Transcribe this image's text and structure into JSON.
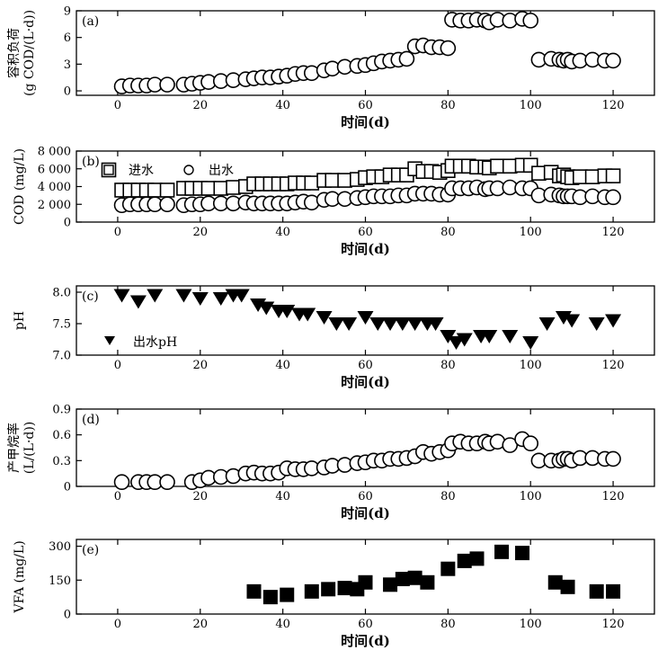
{
  "figure": {
    "x_axis_label": "时间(d)"
  },
  "chart_data": [
    {
      "id": "a",
      "panel_label": "(a)",
      "type": "scatter",
      "marker": "open-circle",
      "ylabel_lines": [
        "容积负荷",
        "(g COD/(L·d))"
      ],
      "xlabel": "时间(d)",
      "xlim": [
        -10,
        130
      ],
      "ylim": [
        -0.5,
        9
      ],
      "x_ticks": [
        0,
        20,
        40,
        60,
        80,
        100,
        120
      ],
      "y_ticks": [
        0,
        3,
        6,
        9
      ],
      "y_tick_labels": [
        "0",
        "3",
        "6",
        "9"
      ],
      "grid": false,
      "series": [
        {
          "x": [
            1,
            3,
            5,
            7,
            9,
            12,
            16,
            18,
            20,
            22,
            25,
            28,
            31,
            33,
            35,
            37,
            39,
            41,
            43,
            45,
            47,
            50,
            52,
            55,
            58,
            60,
            62,
            64,
            66,
            68,
            70,
            72,
            74,
            76,
            78,
            80,
            81,
            83,
            85,
            87,
            89,
            90,
            92,
            95,
            98,
            100,
            102,
            105,
            107,
            108,
            109,
            110,
            112,
            115,
            118,
            120
          ],
          "y": [
            0.5,
            0.6,
            0.6,
            0.6,
            0.7,
            0.7,
            0.7,
            0.8,
            0.9,
            1.0,
            1.1,
            1.2,
            1.3,
            1.4,
            1.5,
            1.5,
            1.6,
            1.7,
            1.9,
            2.0,
            2.0,
            2.3,
            2.5,
            2.7,
            2.8,
            2.9,
            3.1,
            3.3,
            3.4,
            3.5,
            3.6,
            5.0,
            5.1,
            4.9,
            4.9,
            4.8,
            8.0,
            7.9,
            7.9,
            8.0,
            7.9,
            7.7,
            8.0,
            7.9,
            8.1,
            7.9,
            3.5,
            3.6,
            3.5,
            3.4,
            3.5,
            3.3,
            3.4,
            3.5,
            3.4,
            3.4
          ]
        }
      ]
    },
    {
      "id": "b",
      "panel_label": "(b)",
      "type": "scatter",
      "ylabel_lines": [
        "COD (mg/L)"
      ],
      "xlabel": "时间(d)",
      "xlim": [
        -10,
        130
      ],
      "ylim": [
        0,
        8000
      ],
      "x_ticks": [
        0,
        20,
        40,
        60,
        80,
        100,
        120
      ],
      "y_ticks": [
        0,
        2000,
        4000,
        6000,
        8000
      ],
      "y_tick_labels": [
        "0",
        "2 000",
        "4 000",
        "6 000",
        "8 000"
      ],
      "grid": false,
      "legend_position": "top-left",
      "series": [
        {
          "name": "进水",
          "marker": "open-square",
          "x": [
            1,
            3,
            5,
            7,
            9,
            12,
            16,
            18,
            20,
            22,
            25,
            28,
            31,
            33,
            35,
            37,
            39,
            41,
            43,
            45,
            47,
            50,
            52,
            55,
            58,
            60,
            62,
            64,
            66,
            68,
            70,
            72,
            74,
            76,
            78,
            80,
            81,
            83,
            85,
            87,
            89,
            90,
            92,
            95,
            98,
            100,
            102,
            105,
            107,
            108,
            109,
            110,
            112,
            115,
            118,
            120
          ],
          "y": [
            3600,
            3600,
            3600,
            3600,
            3600,
            3600,
            3800,
            3800,
            3800,
            3800,
            3800,
            3900,
            4000,
            4300,
            4300,
            4300,
            4300,
            4300,
            4400,
            4400,
            4400,
            4700,
            4700,
            4700,
            4800,
            5000,
            5100,
            5100,
            5300,
            5300,
            5300,
            6000,
            5700,
            5700,
            5600,
            5800,
            6300,
            6300,
            6300,
            6200,
            6200,
            6100,
            6300,
            6300,
            6400,
            6400,
            5500,
            5600,
            5200,
            5300,
            5100,
            5000,
            5100,
            5100,
            5200,
            5200
          ]
        },
        {
          "name": "出水",
          "marker": "open-circle",
          "x": [
            1,
            3,
            5,
            7,
            9,
            12,
            16,
            18,
            20,
            22,
            25,
            28,
            31,
            33,
            35,
            37,
            39,
            41,
            43,
            45,
            47,
            50,
            52,
            55,
            58,
            60,
            62,
            64,
            66,
            68,
            70,
            72,
            74,
            76,
            78,
            80,
            81,
            83,
            85,
            87,
            89,
            90,
            92,
            95,
            98,
            100,
            102,
            105,
            107,
            108,
            109,
            110,
            112,
            115,
            118,
            120
          ],
          "y": [
            1900,
            2000,
            2000,
            2000,
            2000,
            2000,
            1900,
            2000,
            2000,
            2100,
            2100,
            2100,
            2200,
            2100,
            2100,
            2100,
            2100,
            2100,
            2200,
            2300,
            2200,
            2500,
            2600,
            2600,
            2700,
            2800,
            2900,
            2900,
            2900,
            3000,
            3000,
            3200,
            3200,
            3200,
            3100,
            3100,
            3800,
            3800,
            3800,
            3900,
            3700,
            3800,
            3800,
            3900,
            3800,
            3800,
            3000,
            3100,
            3000,
            2900,
            2900,
            2900,
            2800,
            2900,
            2800,
            2800
          ]
        }
      ]
    },
    {
      "id": "c",
      "panel_label": "(c)",
      "type": "scatter",
      "ylabel_lines": [
        "pH"
      ],
      "xlabel": "时间(d)",
      "xlim": [
        -10,
        130
      ],
      "ylim": [
        7.0,
        8.1
      ],
      "x_ticks": [
        0,
        20,
        40,
        60,
        80,
        100,
        120
      ],
      "y_ticks": [
        7.0,
        7.5,
        8.0
      ],
      "y_tick_labels": [
        "7.0",
        "7.5",
        "8.0"
      ],
      "grid": false,
      "legend_position": "bottom-left",
      "series": [
        {
          "name": "出水pH",
          "marker": "filled-down-triangle",
          "x": [
            1,
            5,
            9,
            16,
            20,
            25,
            28,
            30,
            34,
            36,
            39,
            41,
            44,
            46,
            50,
            53,
            56,
            60,
            63,
            66,
            69,
            72,
            75,
            77,
            80,
            82,
            84,
            88,
            90,
            95,
            100,
            104,
            108,
            110,
            116,
            120
          ],
          "y": [
            7.95,
            7.85,
            7.95,
            7.95,
            7.9,
            7.9,
            7.95,
            7.95,
            7.8,
            7.75,
            7.7,
            7.7,
            7.65,
            7.65,
            7.6,
            7.5,
            7.5,
            7.6,
            7.5,
            7.5,
            7.5,
            7.5,
            7.5,
            7.5,
            7.3,
            7.2,
            7.25,
            7.3,
            7.3,
            7.3,
            7.2,
            7.5,
            7.6,
            7.55,
            7.5,
            7.55
          ]
        }
      ]
    },
    {
      "id": "d",
      "panel_label": "(d)",
      "type": "scatter",
      "marker": "open-circle",
      "ylabel_lines": [
        "产甲烷率",
        "(L/(L·d))"
      ],
      "xlabel": "时间(d)",
      "xlim": [
        -10,
        130
      ],
      "ylim": [
        0,
        0.9
      ],
      "x_ticks": [
        0,
        20,
        40,
        60,
        80,
        100,
        120
      ],
      "y_ticks": [
        0,
        0.3,
        0.6,
        0.9
      ],
      "y_tick_labels": [
        "0",
        "0.3",
        "0.6",
        "0.9"
      ],
      "grid": false,
      "series": [
        {
          "x": [
            1,
            5,
            7,
            9,
            12,
            18,
            20,
            22,
            25,
            28,
            31,
            33,
            35,
            37,
            39,
            41,
            43,
            45,
            47,
            50,
            52,
            55,
            58,
            60,
            62,
            64,
            66,
            68,
            70,
            72,
            74,
            76,
            78,
            80,
            81,
            83,
            85,
            87,
            89,
            90,
            92,
            95,
            98,
            100,
            102,
            105,
            107,
            108,
            109,
            110,
            112,
            115,
            118,
            120
          ],
          "y": [
            0.05,
            0.05,
            0.05,
            0.05,
            0.05,
            0.05,
            0.07,
            0.1,
            0.11,
            0.12,
            0.15,
            0.16,
            0.15,
            0.15,
            0.16,
            0.21,
            0.2,
            0.2,
            0.21,
            0.22,
            0.24,
            0.25,
            0.27,
            0.28,
            0.3,
            0.3,
            0.32,
            0.32,
            0.33,
            0.35,
            0.4,
            0.38,
            0.4,
            0.42,
            0.5,
            0.52,
            0.5,
            0.5,
            0.52,
            0.5,
            0.52,
            0.48,
            0.55,
            0.5,
            0.3,
            0.3,
            0.3,
            0.32,
            0.32,
            0.3,
            0.33,
            0.33,
            0.32,
            0.32
          ]
        }
      ]
    },
    {
      "id": "e",
      "panel_label": "(e)",
      "type": "scatter",
      "marker": "filled-square",
      "ylabel_lines": [
        "VFA (mg/L)"
      ],
      "xlabel": "时间(d)",
      "xlim": [
        -10,
        130
      ],
      "ylim": [
        0,
        330
      ],
      "x_ticks": [
        0,
        20,
        40,
        60,
        80,
        100,
        120
      ],
      "y_ticks": [
        0,
        150,
        300
      ],
      "y_tick_labels": [
        "0",
        "150",
        "300"
      ],
      "grid": false,
      "series": [
        {
          "x": [
            33,
            37,
            41,
            47,
            51,
            55,
            58,
            60,
            66,
            69,
            72,
            75,
            80,
            84,
            87,
            93,
            98,
            106,
            109,
            116,
            120
          ],
          "y": [
            100,
            75,
            85,
            100,
            110,
            115,
            110,
            140,
            130,
            155,
            160,
            140,
            200,
            235,
            245,
            275,
            270,
            140,
            120,
            100,
            100
          ]
        }
      ]
    }
  ]
}
